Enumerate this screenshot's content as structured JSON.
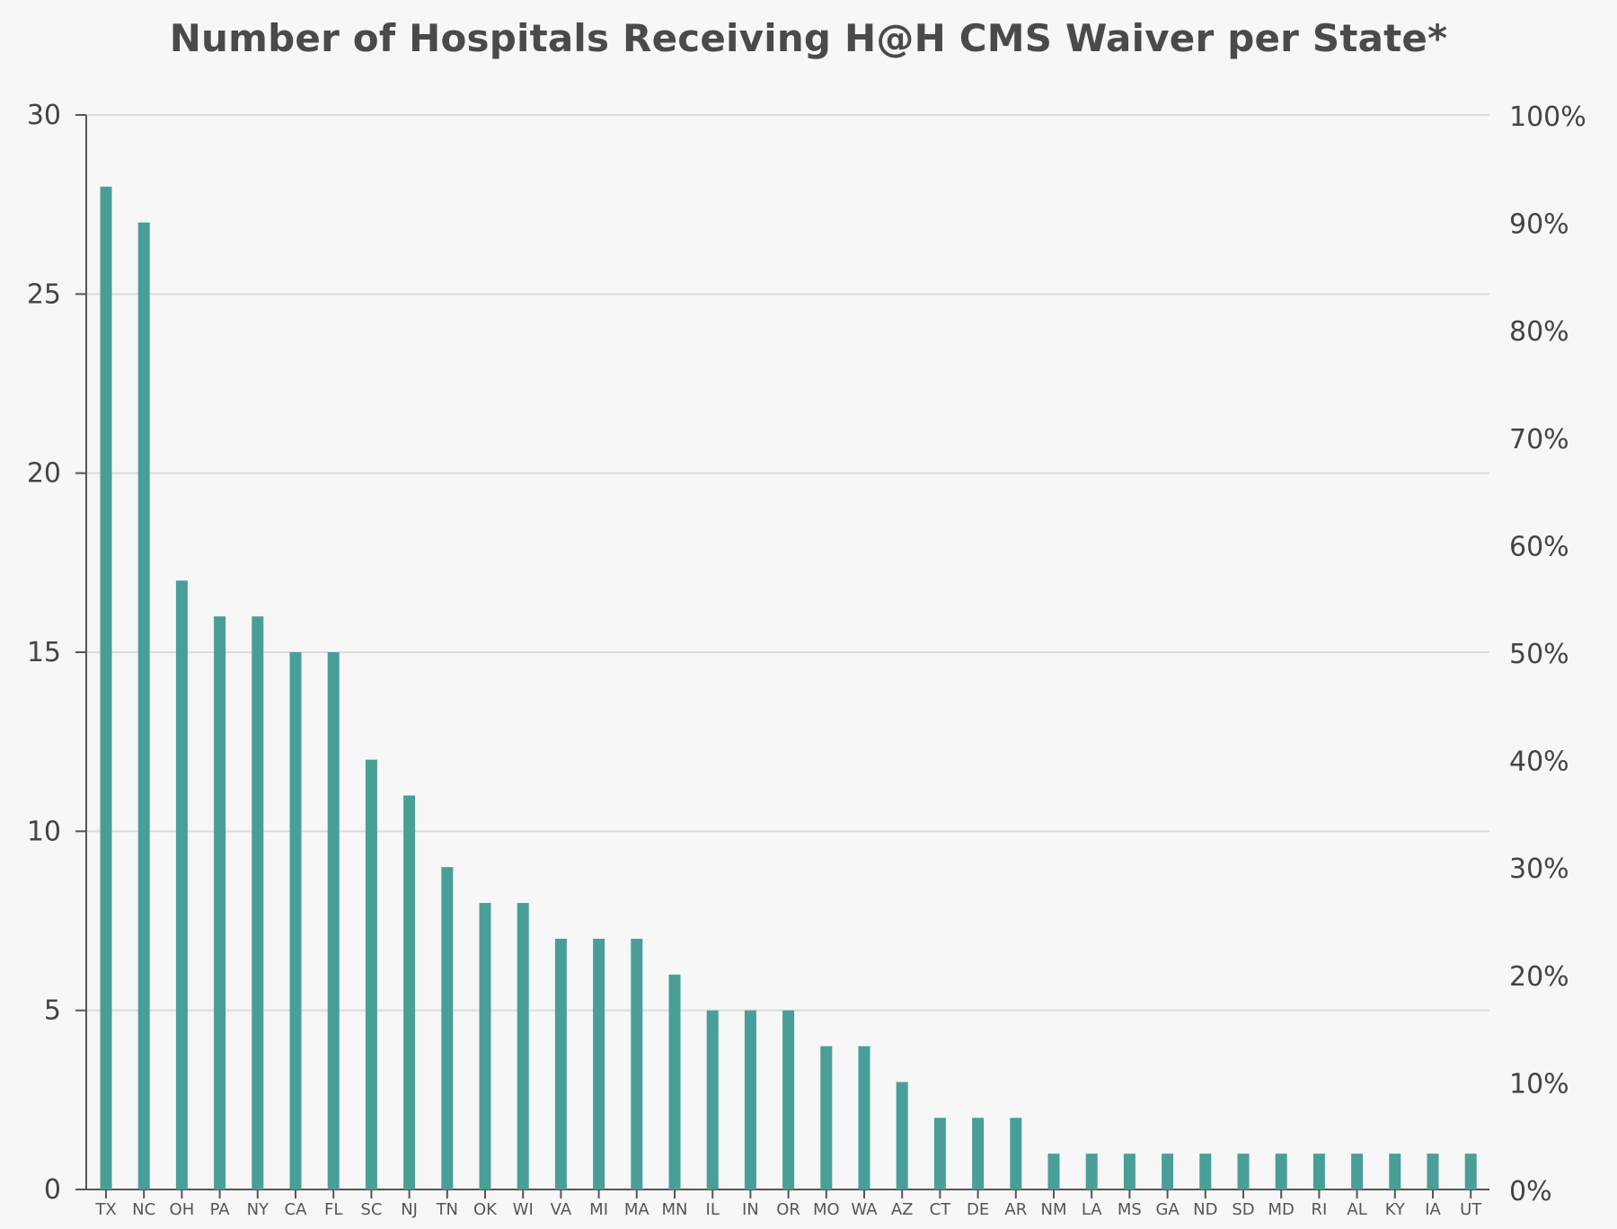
{
  "chart_data": {
    "type": "bar",
    "title": "Number of Hospitals Receiving H@H CMS Waiver per State*",
    "xlabel": "",
    "ylabel": "",
    "categories": [
      "TX",
      "NC",
      "OH",
      "PA",
      "NY",
      "CA",
      "FL",
      "SC",
      "NJ",
      "TN",
      "OK",
      "WI",
      "VA",
      "MI",
      "MA",
      "MN",
      "IL",
      "IN",
      "OR",
      "MO",
      "WA",
      "AZ",
      "CT",
      "DE",
      "AR",
      "NM",
      "LA",
      "MS",
      "GA",
      "ND",
      "SD",
      "MD",
      "RI",
      "AL",
      "KY",
      "IA",
      "UT"
    ],
    "values": [
      28,
      27,
      17,
      16,
      16,
      15,
      15,
      12,
      11,
      9,
      8,
      8,
      7,
      7,
      7,
      6,
      5,
      5,
      5,
      4,
      4,
      3,
      2,
      2,
      2,
      1,
      1,
      1,
      1,
      1,
      1,
      1,
      1,
      1,
      1,
      1,
      1
    ],
    "ylim": [
      0,
      30
    ],
    "yticks": [
      "0",
      "5",
      "10",
      "15",
      "20",
      "25",
      "30"
    ],
    "y2lim": [
      0,
      100
    ],
    "y2ticks": [
      "0%",
      "10%",
      "20%",
      "30%",
      "40%",
      "50%",
      "60%",
      "70%",
      "80%",
      "90%",
      "100%"
    ],
    "grid": true,
    "bar_color": "#4a9e98"
  }
}
